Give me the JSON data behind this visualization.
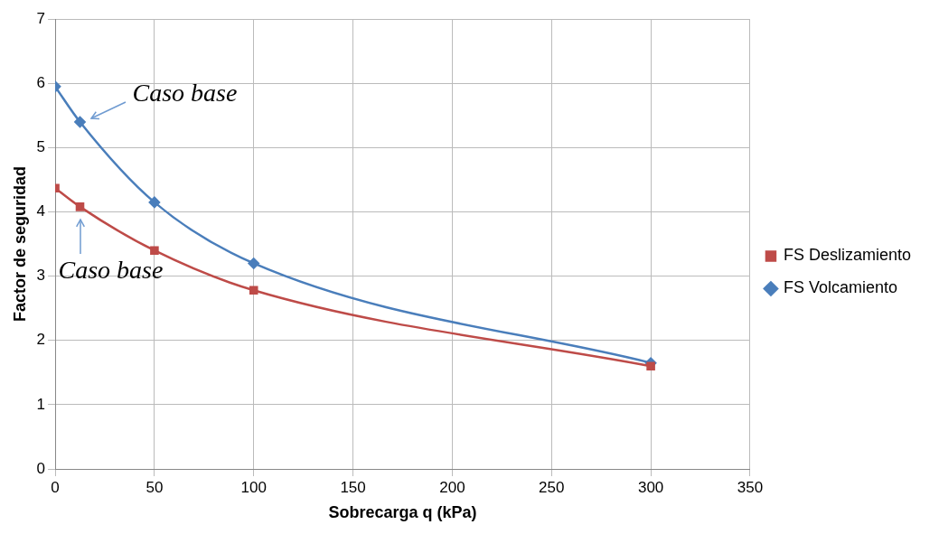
{
  "chart_data": {
    "type": "line",
    "xlabel": "Sobrecarga q (kPa)",
    "ylabel": "Factor de seguridad",
    "xlim": [
      0,
      350
    ],
    "xticks": [
      0,
      50,
      100,
      150,
      200,
      250,
      300,
      350
    ],
    "ylim": [
      0,
      7
    ],
    "yticks": [
      0,
      1,
      2,
      3,
      4,
      5,
      6,
      7
    ],
    "grid": true,
    "legend": "right",
    "series": [
      {
        "name": "FS Volcamiento",
        "color": "#4a7ebb",
        "marker": "diamond",
        "x": [
          0,
          12.5,
          50,
          100,
          300
        ],
        "values": [
          5.95,
          5.4,
          4.15,
          3.2,
          1.65
        ]
      },
      {
        "name": "FS Deslizamiento",
        "color": "#be4b48",
        "marker": "square",
        "x": [
          0,
          12.5,
          50,
          100,
          300
        ],
        "values": [
          4.37,
          4.08,
          3.4,
          2.78,
          1.6
        ]
      }
    ],
    "annotations": [
      {
        "text": "Caso base",
        "x": 12.5,
        "y": 5.4
      },
      {
        "text": "Caso base",
        "x": 12.5,
        "y": 4.08
      }
    ]
  }
}
